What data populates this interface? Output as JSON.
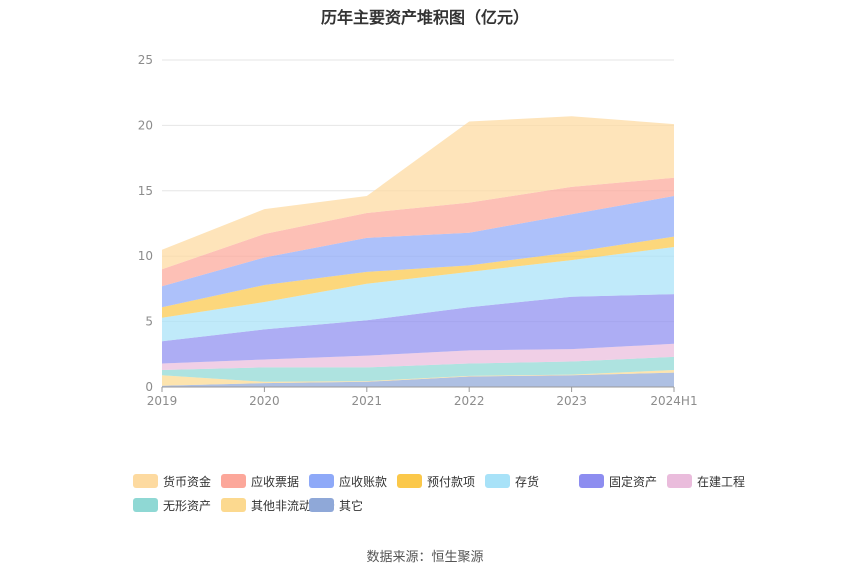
{
  "title": "历年主要资产堆积图（亿元）",
  "source": "数据来源：恒生聚源",
  "chart_data": {
    "type": "area",
    "stacked": true,
    "categories": [
      "2019",
      "2020",
      "2021",
      "2022",
      "2023",
      "2024H1"
    ],
    "ylim": [
      0,
      25
    ],
    "yticks": [
      0,
      5,
      10,
      15,
      20,
      25
    ],
    "grid": true,
    "legend_position": "bottom",
    "series": [
      {
        "name": "其它",
        "color": "#8fa8d8",
        "values": [
          0.1,
          0.3,
          0.4,
          0.8,
          0.9,
          1.1
        ]
      },
      {
        "name": "其他非流动资产",
        "color": "#fcd98f",
        "values": [
          0.8,
          0.1,
          0.05,
          0.05,
          0.05,
          0.2
        ]
      },
      {
        "name": "无形资产",
        "color": "#8fd8d4",
        "values": [
          0.4,
          1.1,
          1.05,
          0.95,
          1.0,
          1.0
        ]
      },
      {
        "name": "在建工程",
        "color": "#eabcdc",
        "values": [
          0.5,
          0.6,
          0.9,
          1.0,
          0.95,
          1.0
        ]
      },
      {
        "name": "固定资产",
        "color": "#8d8df0",
        "values": [
          1.7,
          2.3,
          2.7,
          3.3,
          4.0,
          3.8
        ]
      },
      {
        "name": "存货",
        "color": "#a8e2f8",
        "values": [
          1.8,
          2.1,
          2.8,
          2.7,
          2.8,
          3.6
        ]
      },
      {
        "name": "预付款项",
        "color": "#fbc84a",
        "values": [
          0.8,
          1.3,
          0.9,
          0.5,
          0.6,
          0.8
        ]
      },
      {
        "name": "应收账款",
        "color": "#8ea9f8",
        "values": [
          1.6,
          2.1,
          2.6,
          2.5,
          2.9,
          3.1
        ]
      },
      {
        "name": "应收票据",
        "color": "#fca79a",
        "values": [
          1.3,
          1.8,
          1.9,
          2.3,
          2.1,
          1.4
        ]
      },
      {
        "name": "货币资金",
        "color": "#fddaa0",
        "values": [
          1.5,
          1.9,
          1.3,
          6.2,
          5.4,
          4.1
        ]
      }
    ],
    "legend_order": [
      "货币资金",
      "应收票据",
      "应收账款",
      "预付款项",
      "存货",
      "固定资产",
      "在建工程",
      "无形资产",
      "其他非流动资产",
      "其它"
    ]
  }
}
